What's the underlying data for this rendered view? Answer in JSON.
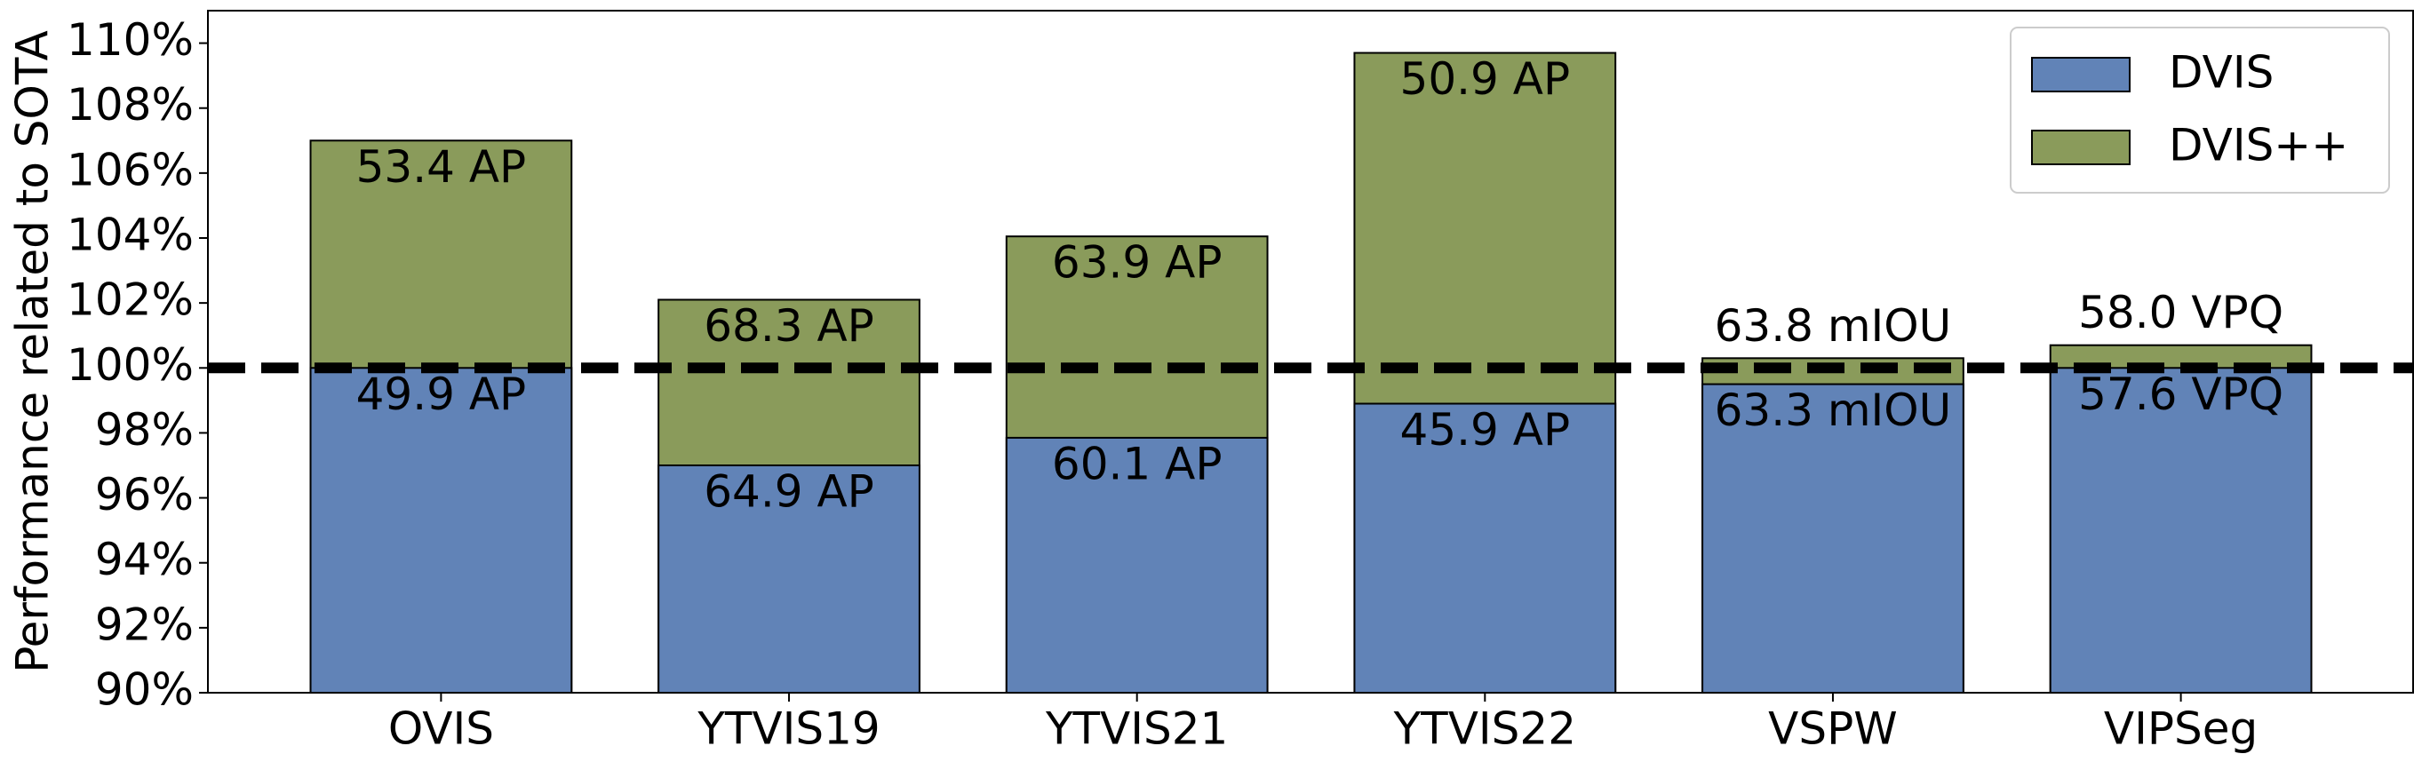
{
  "chart_data": {
    "type": "bar",
    "layout": "overlay",
    "ylabel": "Performance related to SOTA",
    "categories": [
      "OVIS",
      "YTVIS19",
      "YTVIS21",
      "YTVIS22",
      "VSPW",
      "VIPSeg"
    ],
    "series": [
      {
        "name": "DVIS++",
        "color": "#8a9b5b",
        "values": [
          107.0,
          102.1,
          104.05,
          109.7,
          100.3,
          100.7
        ],
        "annotations": [
          "53.4 AP",
          "68.3 AP",
          "63.9 AP",
          "50.9 AP",
          "63.8 mIOU",
          "58.0 VPQ"
        ]
      },
      {
        "name": "DVIS",
        "color": "#6183b7",
        "values": [
          100.0,
          97.0,
          97.85,
          98.9,
          99.5,
          100.0
        ],
        "annotations": [
          "49.9 AP",
          "64.9 AP",
          "60.1 AP",
          "45.9 AP",
          "63.3 mIOU",
          "57.6 VPQ"
        ]
      }
    ],
    "legend_order": [
      1,
      0
    ],
    "reference_line": 100,
    "ylim": [
      90,
      111
    ],
    "yticks": [
      {
        "value": 90,
        "label": "90%"
      },
      {
        "value": 92,
        "label": "92%"
      },
      {
        "value": 94,
        "label": "94%"
      },
      {
        "value": 96,
        "label": "96%"
      },
      {
        "value": 98,
        "label": "98%"
      },
      {
        "value": 100,
        "label": "100%"
      },
      {
        "value": 102,
        "label": "102%"
      },
      {
        "value": 104,
        "label": "104%"
      },
      {
        "value": 106,
        "label": "106%"
      },
      {
        "value": 108,
        "label": "108%"
      },
      {
        "value": 110,
        "label": "110%"
      }
    ],
    "legend": "upper right",
    "grid": false
  }
}
